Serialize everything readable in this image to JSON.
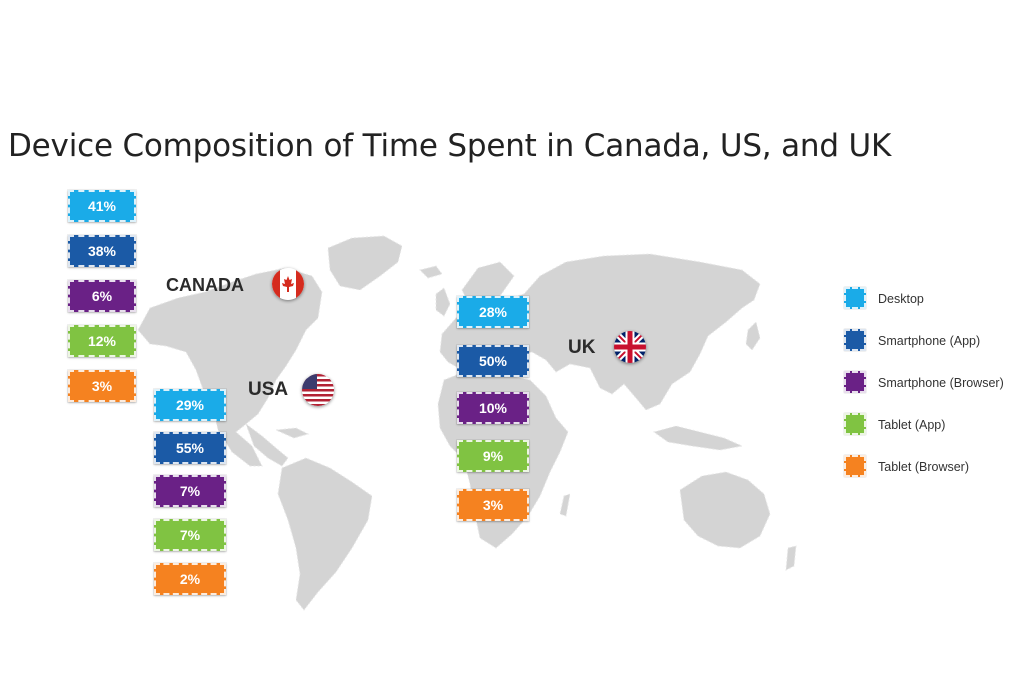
{
  "chart_data": {
    "type": "bar",
    "title": "Device Composition of Time Spent in Canada, US, and UK",
    "categories": [
      "Desktop",
      "Smartphone (App)",
      "Smartphone (Browser)",
      "Tablet (App)",
      "Tablet (Browser)"
    ],
    "colors": [
      "#1aabe8",
      "#1b5aa6",
      "#6a2186",
      "#80c342",
      "#f58220"
    ],
    "series": [
      {
        "name": "CANADA",
        "values": [
          41,
          38,
          6,
          12,
          3
        ],
        "labels": [
          "41%",
          "38%",
          "6%",
          "12%",
          "3%"
        ]
      },
      {
        "name": "USA",
        "values": [
          29,
          55,
          7,
          7,
          2
        ],
        "labels": [
          "29%",
          "55%",
          "7%",
          "7%",
          "2%"
        ]
      },
      {
        "name": "UK",
        "values": [
          28,
          50,
          10,
          9,
          3
        ],
        "labels": [
          "28%",
          "50%",
          "10%",
          "9%",
          "3%"
        ]
      }
    ],
    "legend": {
      "position": "right"
    },
    "map_color": "#d4d4d4"
  }
}
